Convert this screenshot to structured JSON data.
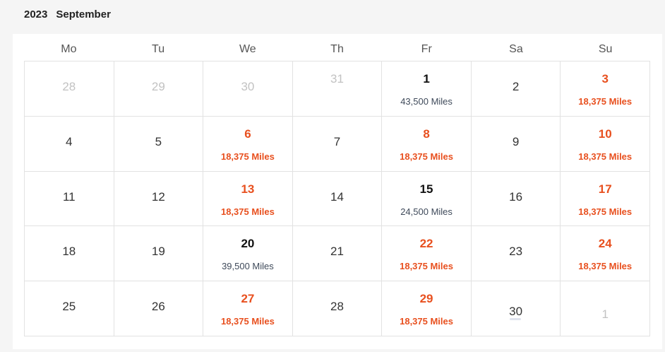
{
  "header": {
    "year": "2023",
    "month": "September"
  },
  "weekdays": [
    "Mo",
    "Tu",
    "We",
    "Th",
    "Fr",
    "Sa",
    "Su"
  ],
  "days": [
    {
      "day": "28",
      "price": "",
      "state": "muted"
    },
    {
      "day": "29",
      "price": "",
      "state": "muted"
    },
    {
      "day": "30",
      "price": "",
      "state": "muted"
    },
    {
      "day": "31",
      "price": "",
      "state": "muted"
    },
    {
      "day": "1",
      "price": "43,500 Miles",
      "state": "normal"
    },
    {
      "day": "2",
      "price": "",
      "state": "plain"
    },
    {
      "day": "3",
      "price": "18,375 Miles",
      "state": "deal"
    },
    {
      "day": "4",
      "price": "",
      "state": "plain"
    },
    {
      "day": "5",
      "price": "",
      "state": "plain"
    },
    {
      "day": "6",
      "price": "18,375 Miles",
      "state": "deal"
    },
    {
      "day": "7",
      "price": "",
      "state": "plain"
    },
    {
      "day": "8",
      "price": "18,375 Miles",
      "state": "deal"
    },
    {
      "day": "9",
      "price": "",
      "state": "plain"
    },
    {
      "day": "10",
      "price": "18,375 Miles",
      "state": "deal"
    },
    {
      "day": "11",
      "price": "",
      "state": "plain"
    },
    {
      "day": "12",
      "price": "",
      "state": "plain"
    },
    {
      "day": "13",
      "price": "18,375 Miles",
      "state": "deal"
    },
    {
      "day": "14",
      "price": "",
      "state": "plain"
    },
    {
      "day": "15",
      "price": "24,500 Miles",
      "state": "normal"
    },
    {
      "day": "16",
      "price": "",
      "state": "plain"
    },
    {
      "day": "17",
      "price": "18,375 Miles",
      "state": "deal"
    },
    {
      "day": "18",
      "price": "",
      "state": "plain"
    },
    {
      "day": "19",
      "price": "",
      "state": "plain"
    },
    {
      "day": "20",
      "price": "39,500 Miles",
      "state": "normal"
    },
    {
      "day": "21",
      "price": "",
      "state": "plain"
    },
    {
      "day": "22",
      "price": "18,375 Miles",
      "state": "deal"
    },
    {
      "day": "23",
      "price": "",
      "state": "plain"
    },
    {
      "day": "24",
      "price": "18,375 Miles",
      "state": "deal"
    },
    {
      "day": "25",
      "price": "",
      "state": "plain"
    },
    {
      "day": "26",
      "price": "",
      "state": "plain"
    },
    {
      "day": "27",
      "price": "18,375 Miles",
      "state": "deal"
    },
    {
      "day": "28",
      "price": "",
      "state": "plain"
    },
    {
      "day": "29",
      "price": "18,375 Miles",
      "state": "deal"
    },
    {
      "day": "30",
      "price": "",
      "state": "loading"
    },
    {
      "day": "1",
      "price": "",
      "state": "muted-next"
    }
  ],
  "colors": {
    "deal": "#e8501f",
    "regular_price": "#3f4a5a",
    "muted": "#c2c2c2"
  }
}
